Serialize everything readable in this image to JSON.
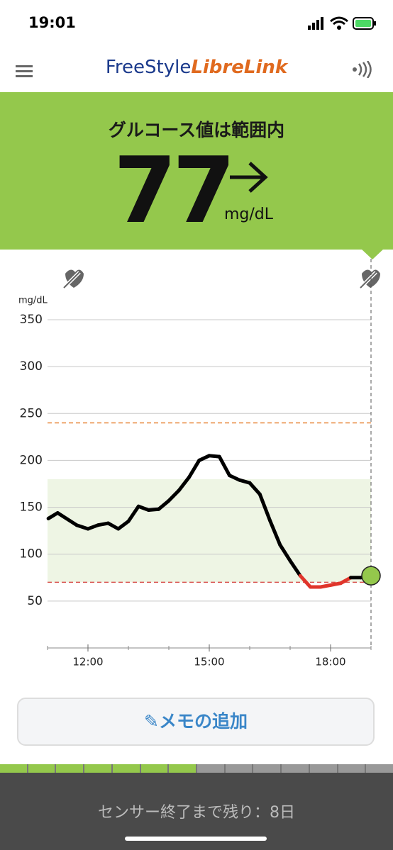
{
  "status_bar": {
    "time": "19:01"
  },
  "header": {
    "brand": "FreeStyle",
    "product": "LibreLink"
  },
  "reading": {
    "status": "グルコース値は範囲内",
    "value": "77",
    "unit": "mg/dL"
  },
  "chart_data": {
    "type": "line",
    "y_label": "mg/dL",
    "x": [
      11.02,
      11.25,
      11.72,
      12.0,
      12.25,
      12.5,
      12.75,
      13.0,
      13.25,
      13.5,
      13.75,
      14.0,
      14.25,
      14.5,
      14.75,
      15.0,
      15.25,
      15.5,
      15.75,
      16.0,
      16.25,
      16.5,
      16.75,
      17.0,
      17.25,
      17.5,
      17.75,
      18.0,
      18.25,
      18.5,
      18.75,
      19.0
    ],
    "series": [
      {
        "name": "glucose",
        "color": "#000000",
        "low_color": "#e0352b",
        "marker_color": "#94c84c",
        "values": [
          138,
          144,
          131,
          127,
          131,
          133,
          127,
          135,
          151,
          147,
          148,
          157,
          168,
          182,
          200,
          205,
          204,
          184,
          179,
          176,
          164,
          136,
          110,
          93,
          77,
          65,
          65,
          67,
          69,
          75,
          75,
          77
        ]
      }
    ],
    "xlim": [
      11,
      19
    ],
    "ylim": [
      0,
      350
    ],
    "xticks": [
      {
        "value": 12,
        "label": "12:00"
      },
      {
        "value": 15,
        "label": "15:00"
      },
      {
        "value": 18,
        "label": "18:00"
      }
    ],
    "xminor": [
      11,
      13,
      14,
      16,
      17,
      19
    ],
    "yticks": [
      50,
      100,
      150,
      200,
      250,
      300,
      350
    ],
    "target_range": [
      70,
      180
    ],
    "target_color": "#eef5e4",
    "low_line": 70,
    "low_line_color": "#d9534f",
    "high_line": 240,
    "high_line_color": "#e8883a",
    "grid": true
  },
  "memo_button": {
    "label": "メモの追加"
  },
  "sensor": {
    "remaining": "センサー終了まで残り：8日"
  }
}
